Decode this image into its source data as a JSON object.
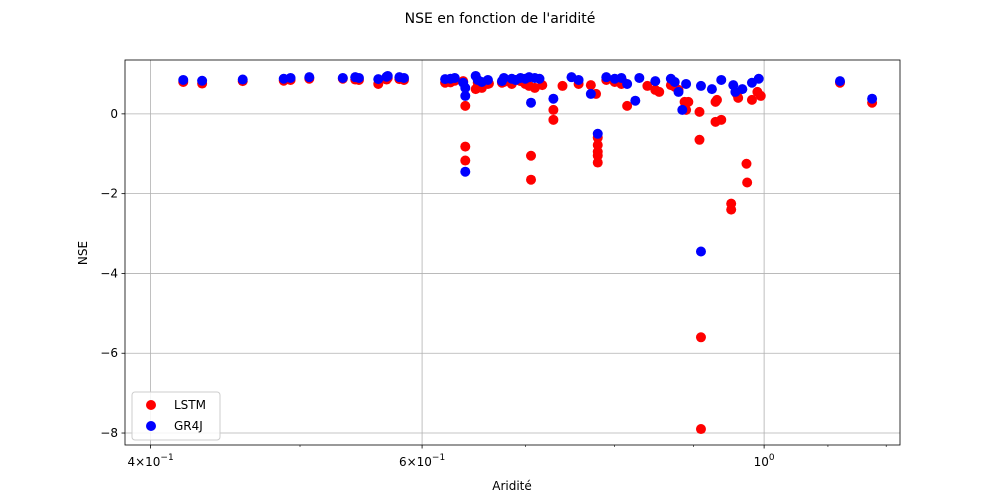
{
  "chart_data": {
    "type": "scatter",
    "title": "NSE en fonction de l'aridité",
    "xlabel": "Aridité",
    "ylabel": "NSE",
    "xscale": "log",
    "xlim": [
      0.385,
      1.225
    ],
    "ylim": [
      -8.3,
      1.35
    ],
    "x_ticks": [
      {
        "value": 0.4,
        "base": "4",
        "exp": "−1"
      },
      {
        "value": 0.6,
        "base": "6",
        "exp": "−1"
      },
      {
        "value": 1.0,
        "base": "1",
        "exp": "0",
        "mantissa": false
      }
    ],
    "y_ticks": [
      {
        "value": 0,
        "label": "0"
      },
      {
        "value": -2,
        "label": "−2"
      },
      {
        "value": -4,
        "label": "−4"
      },
      {
        "value": -6,
        "label": "−6"
      },
      {
        "value": -8,
        "label": "−8"
      }
    ],
    "grid": true,
    "legend_position": "lower-left",
    "series": [
      {
        "name": "LSTM",
        "color": "#ff0000",
        "points": [
          [
            0.42,
            0.8
          ],
          [
            0.432,
            0.76
          ],
          [
            0.459,
            0.82
          ],
          [
            0.488,
            0.83
          ],
          [
            0.493,
            0.85
          ],
          [
            0.507,
            0.88
          ],
          [
            0.533,
            0.88
          ],
          [
            0.543,
            0.86
          ],
          [
            0.546,
            0.85
          ],
          [
            0.562,
            0.75
          ],
          [
            0.569,
            0.86
          ],
          [
            0.57,
            0.9
          ],
          [
            0.58,
            0.87
          ],
          [
            0.584,
            0.85
          ],
          [
            0.621,
            0.78
          ],
          [
            0.626,
            0.79
          ],
          [
            0.63,
            0.83
          ],
          [
            0.638,
            0.82
          ],
          [
            0.64,
            0.2
          ],
          [
            0.64,
            -0.82
          ],
          [
            0.64,
            -1.17
          ],
          [
            0.65,
            0.62
          ],
          [
            0.652,
            0.78
          ],
          [
            0.656,
            0.65
          ],
          [
            0.662,
            0.75
          ],
          [
            0.663,
            0.76
          ],
          [
            0.676,
            0.78
          ],
          [
            0.678,
            0.8
          ],
          [
            0.686,
            0.75
          ],
          [
            0.69,
            0.85
          ],
          [
            0.695,
            0.82
          ],
          [
            0.7,
            0.75
          ],
          [
            0.704,
            0.7
          ],
          [
            0.706,
            -1.05
          ],
          [
            0.706,
            -1.65
          ],
          [
            0.71,
            0.65
          ],
          [
            0.718,
            0.72
          ],
          [
            0.73,
            0.1
          ],
          [
            0.73,
            -0.15
          ],
          [
            0.74,
            0.7
          ],
          [
            0.758,
            0.75
          ],
          [
            0.772,
            0.72
          ],
          [
            0.778,
            0.5
          ],
          [
            0.78,
            -0.6
          ],
          [
            0.78,
            -0.78
          ],
          [
            0.78,
            -0.95
          ],
          [
            0.78,
            -1.05
          ],
          [
            0.78,
            -1.22
          ],
          [
            0.79,
            0.85
          ],
          [
            0.8,
            0.8
          ],
          [
            0.808,
            0.75
          ],
          [
            0.81,
            0.8
          ],
          [
            0.815,
            0.2
          ],
          [
            0.84,
            0.7
          ],
          [
            0.85,
            0.6
          ],
          [
            0.855,
            0.55
          ],
          [
            0.87,
            0.72
          ],
          [
            0.875,
            0.68
          ],
          [
            0.88,
            0.6
          ],
          [
            0.888,
            0.3
          ],
          [
            0.893,
            0.3
          ],
          [
            0.89,
            0.1
          ],
          [
            0.908,
            0.05
          ],
          [
            0.908,
            -0.65
          ],
          [
            0.91,
            -5.6
          ],
          [
            0.91,
            -7.9
          ],
          [
            0.93,
            0.3
          ],
          [
            0.93,
            -0.2
          ],
          [
            0.932,
            0.35
          ],
          [
            0.938,
            -0.15
          ],
          [
            0.952,
            -2.25
          ],
          [
            0.952,
            -2.4
          ],
          [
            0.96,
            0.5
          ],
          [
            0.962,
            0.4
          ],
          [
            0.974,
            -1.25
          ],
          [
            0.975,
            -1.72
          ],
          [
            0.982,
            0.35
          ],
          [
            0.99,
            0.55
          ],
          [
            0.995,
            0.45
          ],
          [
            1.12,
            0.78
          ],
          [
            1.175,
            0.28
          ]
        ]
      },
      {
        "name": "GR4J",
        "color": "#0000ff",
        "points": [
          [
            0.42,
            0.85
          ],
          [
            0.432,
            0.83
          ],
          [
            0.459,
            0.86
          ],
          [
            0.488,
            0.88
          ],
          [
            0.493,
            0.9
          ],
          [
            0.507,
            0.92
          ],
          [
            0.533,
            0.9
          ],
          [
            0.543,
            0.92
          ],
          [
            0.546,
            0.9
          ],
          [
            0.562,
            0.87
          ],
          [
            0.569,
            0.93
          ],
          [
            0.57,
            0.95
          ],
          [
            0.58,
            0.92
          ],
          [
            0.584,
            0.9
          ],
          [
            0.621,
            0.87
          ],
          [
            0.626,
            0.88
          ],
          [
            0.63,
            0.9
          ],
          [
            0.638,
            0.78
          ],
          [
            0.64,
            0.65
          ],
          [
            0.64,
            0.45
          ],
          [
            0.64,
            -1.45
          ],
          [
            0.65,
            0.95
          ],
          [
            0.652,
            0.85
          ],
          [
            0.656,
            0.8
          ],
          [
            0.662,
            0.85
          ],
          [
            0.676,
            0.82
          ],
          [
            0.678,
            0.9
          ],
          [
            0.686,
            0.88
          ],
          [
            0.69,
            0.85
          ],
          [
            0.695,
            0.9
          ],
          [
            0.7,
            0.88
          ],
          [
            0.704,
            0.92
          ],
          [
            0.706,
            0.28
          ],
          [
            0.71,
            0.9
          ],
          [
            0.715,
            0.88
          ],
          [
            0.73,
            0.38
          ],
          [
            0.75,
            0.92
          ],
          [
            0.758,
            0.85
          ],
          [
            0.772,
            0.5
          ],
          [
            0.78,
            -0.5
          ],
          [
            0.79,
            0.92
          ],
          [
            0.8,
            0.88
          ],
          [
            0.808,
            0.9
          ],
          [
            0.815,
            0.75
          ],
          [
            0.825,
            0.33
          ],
          [
            0.83,
            0.9
          ],
          [
            0.85,
            0.82
          ],
          [
            0.87,
            0.88
          ],
          [
            0.875,
            0.8
          ],
          [
            0.88,
            0.55
          ],
          [
            0.885,
            0.1
          ],
          [
            0.89,
            0.75
          ],
          [
            0.91,
            0.7
          ],
          [
            0.91,
            -3.45
          ],
          [
            0.925,
            0.62
          ],
          [
            0.938,
            0.85
          ],
          [
            0.955,
            0.72
          ],
          [
            0.958,
            0.55
          ],
          [
            0.968,
            0.62
          ],
          [
            0.982,
            0.78
          ],
          [
            0.992,
            0.88
          ],
          [
            1.12,
            0.82
          ],
          [
            1.175,
            0.38
          ]
        ]
      }
    ]
  }
}
